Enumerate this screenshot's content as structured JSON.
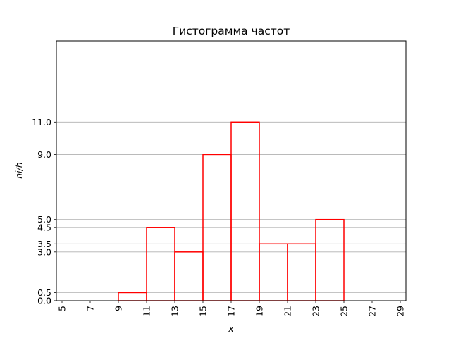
{
  "chart_data": {
    "type": "bar",
    "title": "Гистограмма частот",
    "xlabel": "x",
    "ylabel": "ni/h",
    "xlim": [
      4.6,
      29.4
    ],
    "ylim": [
      0,
      16
    ],
    "xticks": [
      "5",
      "7",
      "9",
      "11",
      "13",
      "15",
      "17",
      "19",
      "21",
      "23",
      "25",
      "27",
      "29"
    ],
    "yticks": [
      "0.0",
      "0.0",
      "0.5",
      "3.0",
      "3.5",
      "4.5",
      "5.0",
      "9.0",
      "11.0"
    ],
    "grid": "y",
    "bar_color": "#ff0000",
    "bins": [
      {
        "x0": 5,
        "x1": 7,
        "value": 0.0
      },
      {
        "x0": 7,
        "x1": 9,
        "value": 0.0
      },
      {
        "x0": 9,
        "x1": 11,
        "value": 0.5
      },
      {
        "x0": 11,
        "x1": 13,
        "value": 4.5
      },
      {
        "x0": 13,
        "x1": 15,
        "value": 3.0
      },
      {
        "x0": 15,
        "x1": 17,
        "value": 9.0
      },
      {
        "x0": 17,
        "x1": 19,
        "value": 11.0
      },
      {
        "x0": 19,
        "x1": 21,
        "value": 3.5
      },
      {
        "x0": 21,
        "x1": 23,
        "value": 3.5
      },
      {
        "x0": 23,
        "x1": 25,
        "value": 5.0
      },
      {
        "x0": 25,
        "x1": 27,
        "value": 0.0
      },
      {
        "x0": 27,
        "x1": 29,
        "value": 0.0
      }
    ]
  }
}
